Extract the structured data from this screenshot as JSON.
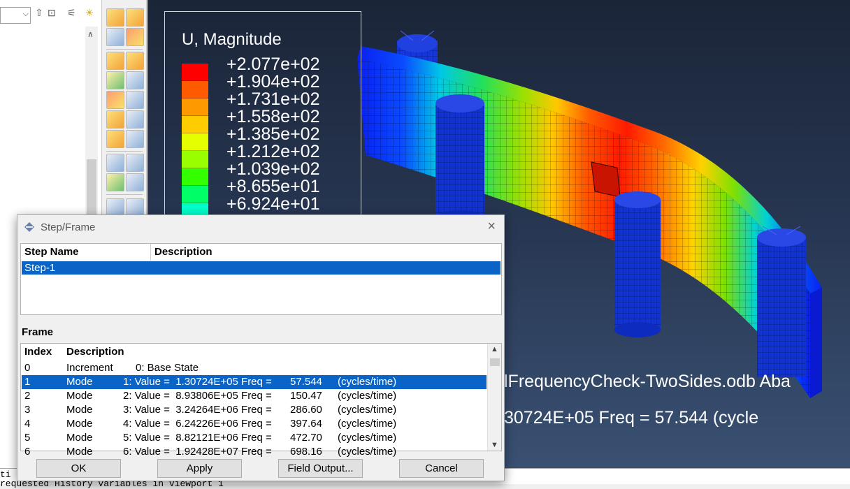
{
  "left_panel": {
    "combo_arrow": "⌵",
    "scroll_up": "∧"
  },
  "toolbox": {
    "icons": [
      "numbered-part-icon",
      "swap-part-icon",
      "plot-contour-icon",
      "plot-deformed-icon",
      "plot-symbol-icon",
      "animate-icon",
      "xy-data-icon",
      "report-icon",
      "query-icon",
      "results-table-icon"
    ]
  },
  "viewport": {
    "legend": {
      "title": "U, Magnitude",
      "values": [
        "+2.077e+02",
        "+1.904e+02",
        "+1.731e+02",
        "+1.558e+02",
        "+1.385e+02",
        "+1.212e+02",
        "+1.039e+02",
        "+8.655e+01",
        "+6.924e+01"
      ],
      "colors": [
        "#ff0000",
        "#ff5a00",
        "#ff9900",
        "#ffcc00",
        "#e6ff00",
        "#99ff00",
        "#33ff00",
        "#00ff66",
        "#00ffcc"
      ]
    },
    "overlay_line1": "lFrequencyCheck-TwoSides.odb    Aba",
    "overlay_line2": "30724E+05 Freq =   57.544     (cycle"
  },
  "bottom_log": {
    "line1": "ti",
    "line2": "requested History variables in viewport 1"
  },
  "dialog": {
    "title": "Step/Frame",
    "close": "×",
    "step_columns": [
      "Step Name",
      "Description"
    ],
    "steps": [
      {
        "name": "Step-1",
        "description": ""
      }
    ],
    "frame_label": "Frame",
    "frame_columns": [
      "Index",
      "Description"
    ],
    "frames": [
      {
        "index": "0",
        "type": "Increment",
        "desc": "0: Base State",
        "freq": "",
        "unit": ""
      },
      {
        "index": "1",
        "type": "Mode",
        "desc": "1: Value =  1.30724E+05 Freq =",
        "freq": "57.544",
        "unit": "(cycles/time)"
      },
      {
        "index": "2",
        "type": "Mode",
        "desc": "2: Value =  8.93806E+05 Freq =",
        "freq": "150.47",
        "unit": "(cycles/time)"
      },
      {
        "index": "3",
        "type": "Mode",
        "desc": "3: Value =  3.24264E+06 Freq =",
        "freq": "286.60",
        "unit": "(cycles/time)"
      },
      {
        "index": "4",
        "type": "Mode",
        "desc": "4: Value =  6.24226E+06 Freq =",
        "freq": "397.64",
        "unit": "(cycles/time)"
      },
      {
        "index": "5",
        "type": "Mode",
        "desc": "5: Value =  8.82121E+06 Freq =",
        "freq": "472.70",
        "unit": "(cycles/time)"
      },
      {
        "index": "6",
        "type": "Mode",
        "desc": "6: Value =  1.92428E+07 Freq =",
        "freq": "698.16",
        "unit": "(cycles/time)"
      }
    ],
    "selected_frame": "1",
    "buttons": {
      "ok": "OK",
      "apply": "Apply",
      "field_output": "Field Output...",
      "cancel": "Cancel"
    }
  }
}
